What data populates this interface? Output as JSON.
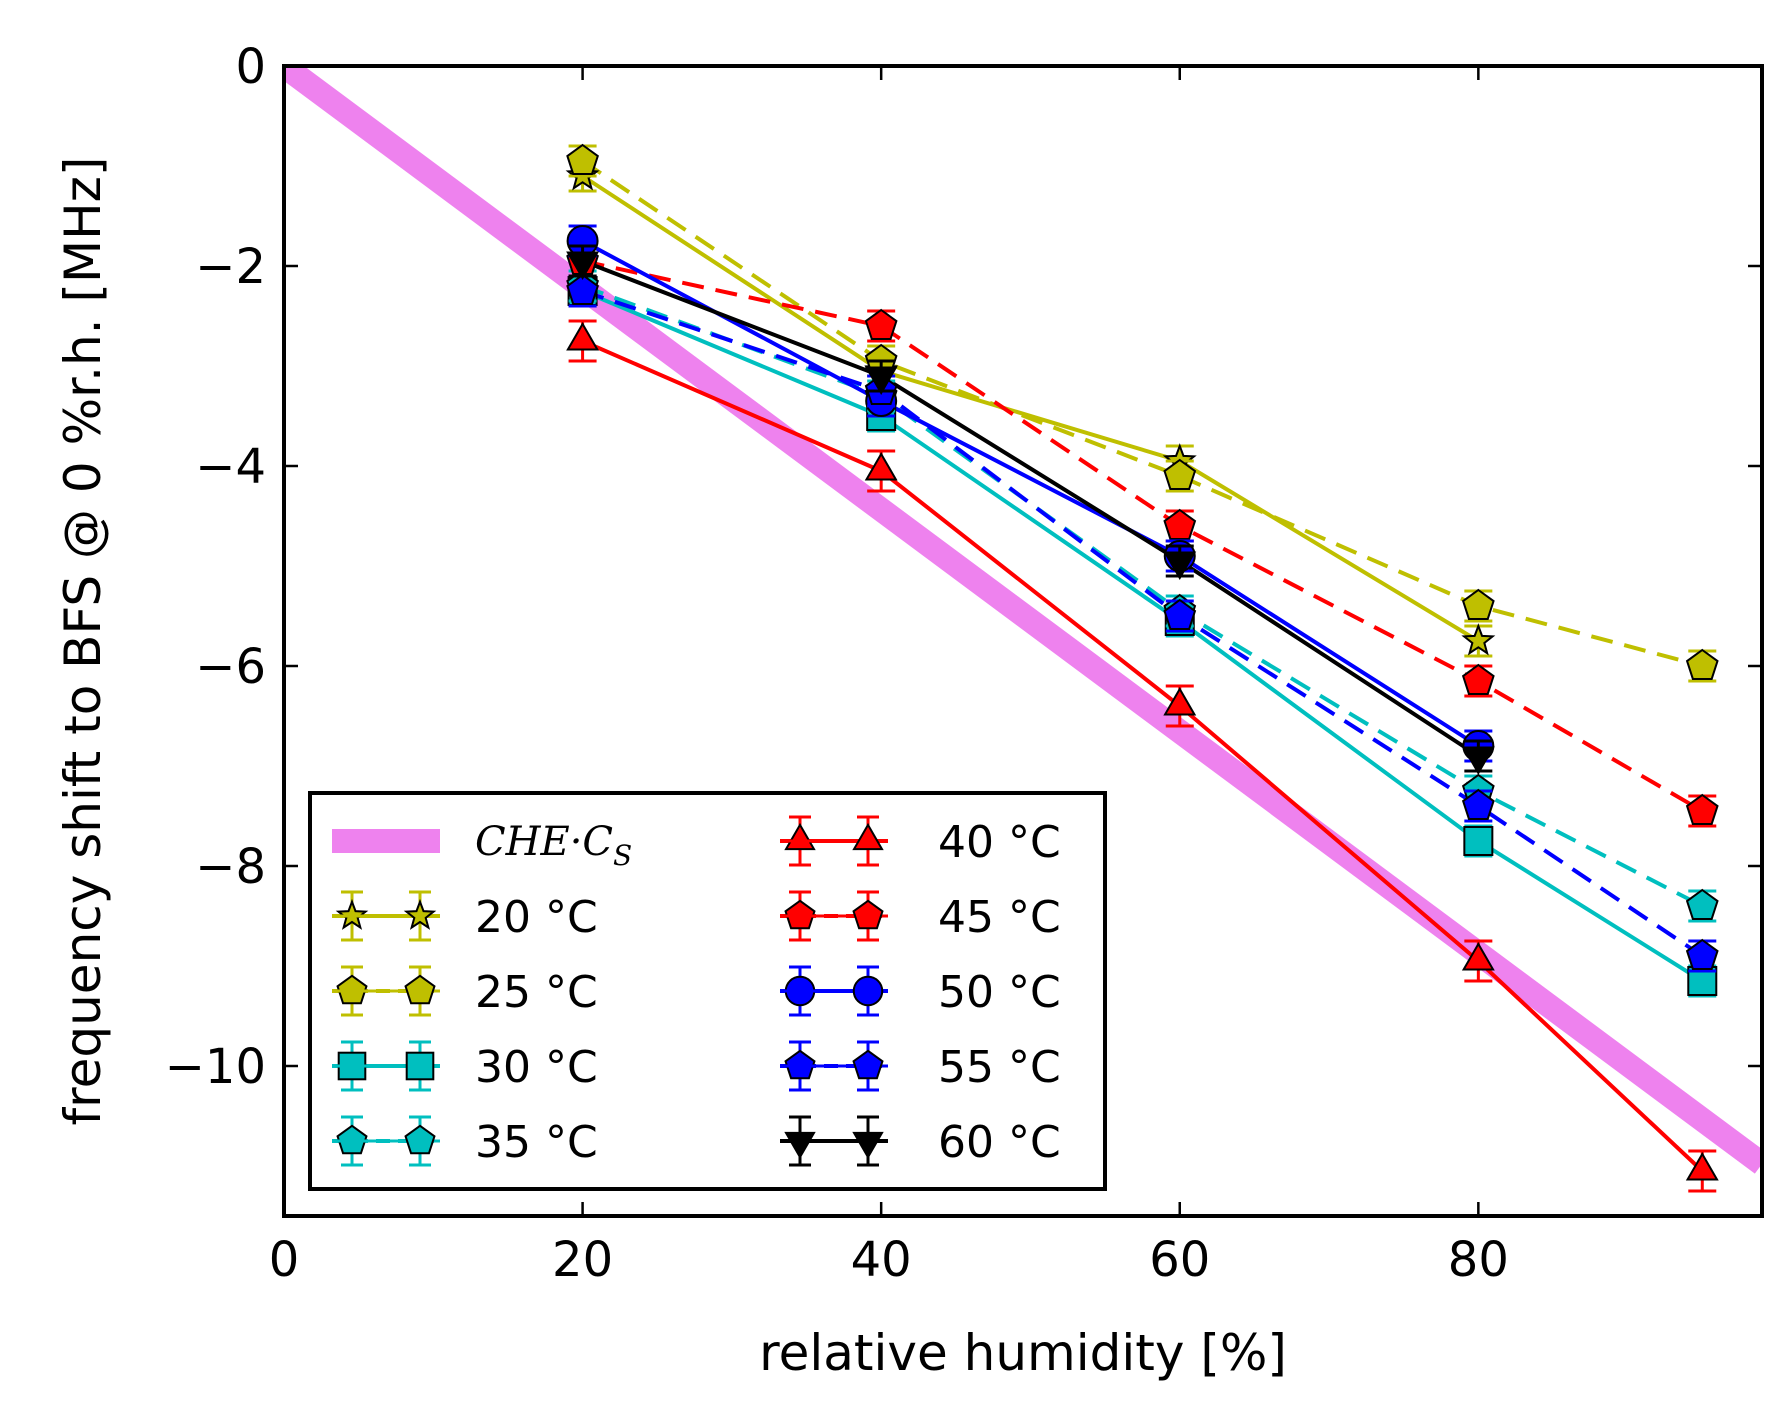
{
  "chart_data": {
    "type": "line",
    "xlabel": "relative humidity [%]",
    "ylabel": "frequency shift to BFS @ 0 %r.h. [MHz]",
    "xlim": [
      0,
      99
    ],
    "ylim": [
      -11.5,
      0
    ],
    "xticks": [
      0,
      20,
      40,
      60,
      80
    ],
    "yticks": [
      0,
      -2,
      -4,
      -6,
      -8,
      -10
    ],
    "xtick_labels": [
      "0",
      "20",
      "40",
      "60",
      "80"
    ],
    "ytick_labels": [
      "0",
      "−2",
      "−4",
      "−6",
      "−8",
      "−10"
    ],
    "grid": false,
    "legend_position": "lower-left",
    "reference_line": {
      "name": "CHE·C",
      "subscript": "S",
      "color": "#ee82ee",
      "x": [
        0,
        99
      ],
      "y": [
        0,
        -10.98
      ]
    },
    "series": [
      {
        "name": "20 °C",
        "color": "#bfbf00",
        "marker": "star",
        "dash": false,
        "x": [
          20,
          40,
          60,
          80
        ],
        "y": [
          -1.1,
          -3.05,
          -3.95,
          -5.75
        ],
        "err": [
          0.15,
          0.15,
          0.15,
          0.15
        ]
      },
      {
        "name": "25 °C",
        "color": "#bfbf00",
        "marker": "pentagon",
        "dash": true,
        "x": [
          20,
          40,
          60,
          80,
          95
        ],
        "y": [
          -0.95,
          -2.95,
          -4.1,
          -5.4,
          -6.0
        ],
        "err": [
          0.15,
          0.15,
          0.15,
          0.15,
          0.15
        ]
      },
      {
        "name": "30 °C",
        "color": "#00bfbf",
        "marker": "square",
        "dash": false,
        "x": [
          20,
          40,
          60,
          80,
          95
        ],
        "y": [
          -2.25,
          -3.5,
          -5.55,
          -7.75,
          -9.15
        ],
        "err": [
          0.15,
          0.15,
          0.15,
          0.15,
          0.15
        ]
      },
      {
        "name": "35 °C",
        "color": "#00bfbf",
        "marker": "pentagon",
        "dash": true,
        "x": [
          20,
          40,
          60,
          80,
          95
        ],
        "y": [
          -2.2,
          -3.3,
          -5.45,
          -7.25,
          -8.4
        ],
        "err": [
          0.15,
          0.15,
          0.15,
          0.15,
          0.15
        ]
      },
      {
        "name": "40 °C",
        "color": "#ff0000",
        "marker": "triangle-up",
        "dash": false,
        "x": [
          20,
          40,
          60,
          80,
          95
        ],
        "y": [
          -2.75,
          -4.05,
          -6.4,
          -8.95,
          -11.05
        ],
        "err": [
          0.2,
          0.2,
          0.2,
          0.2,
          0.2
        ]
      },
      {
        "name": "45 °C",
        "color": "#ff0000",
        "marker": "pentagon",
        "dash": true,
        "x": [
          20,
          40,
          60,
          80,
          95
        ],
        "y": [
          -1.95,
          -2.6,
          -4.6,
          -6.15,
          -7.45
        ],
        "err": [
          0.15,
          0.15,
          0.15,
          0.15,
          0.15
        ]
      },
      {
        "name": "50 °C",
        "color": "#0000ff",
        "marker": "circle",
        "dash": false,
        "x": [
          20,
          40,
          60,
          80
        ],
        "y": [
          -1.75,
          -3.35,
          -4.9,
          -6.8
        ],
        "err": [
          0.15,
          0.15,
          0.15,
          0.15
        ]
      },
      {
        "name": "55 °C",
        "color": "#0000ff",
        "marker": "pentagon",
        "dash": true,
        "x": [
          20,
          40,
          60,
          80,
          95
        ],
        "y": [
          -2.25,
          -3.25,
          -5.5,
          -7.4,
          -8.9
        ],
        "err": [
          0.15,
          0.15,
          0.15,
          0.15,
          0.15
        ]
      },
      {
        "name": "60 °C",
        "color": "#000000",
        "marker": "triangle-down",
        "dash": false,
        "x": [
          20,
          40,
          60,
          80
        ],
        "y": [
          -1.95,
          -3.1,
          -4.95,
          -6.9
        ],
        "err": [
          0.15,
          0.15,
          0.15,
          0.15
        ]
      }
    ]
  }
}
